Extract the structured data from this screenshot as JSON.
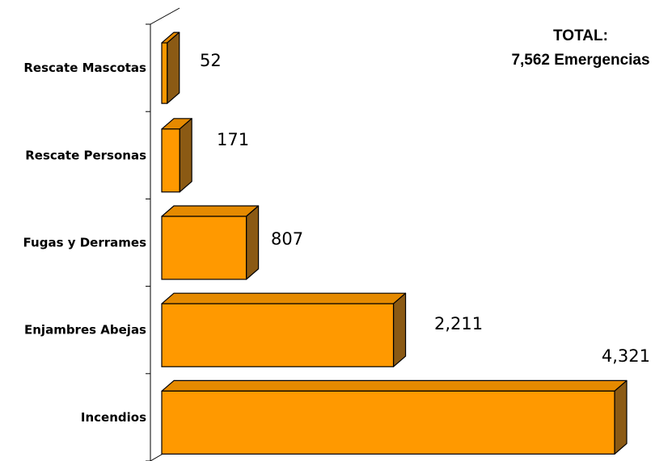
{
  "chart_data": {
    "type": "bar",
    "orientation": "horizontal",
    "style": "3d",
    "categories": [
      "Rescate Mascotas",
      "Rescate Personas",
      "Fugas y Derrames",
      "Enjambres Abejas",
      "Incendios"
    ],
    "values": [
      52,
      171,
      807,
      2211,
      4321
    ],
    "value_labels": [
      "52",
      "171",
      "807",
      "2,211",
      "4,321"
    ],
    "title": "",
    "xlabel": "",
    "ylabel": "",
    "xlim": [
      0,
      4321
    ],
    "grid": false,
    "legend": "none",
    "annotation": {
      "line1": "TOTAL:",
      "line2": "7,562 Emergencias"
    },
    "colors": {
      "front": "#FF9900",
      "top": "#E58A00",
      "side": "#8B5A14",
      "outline": "#000000"
    }
  }
}
